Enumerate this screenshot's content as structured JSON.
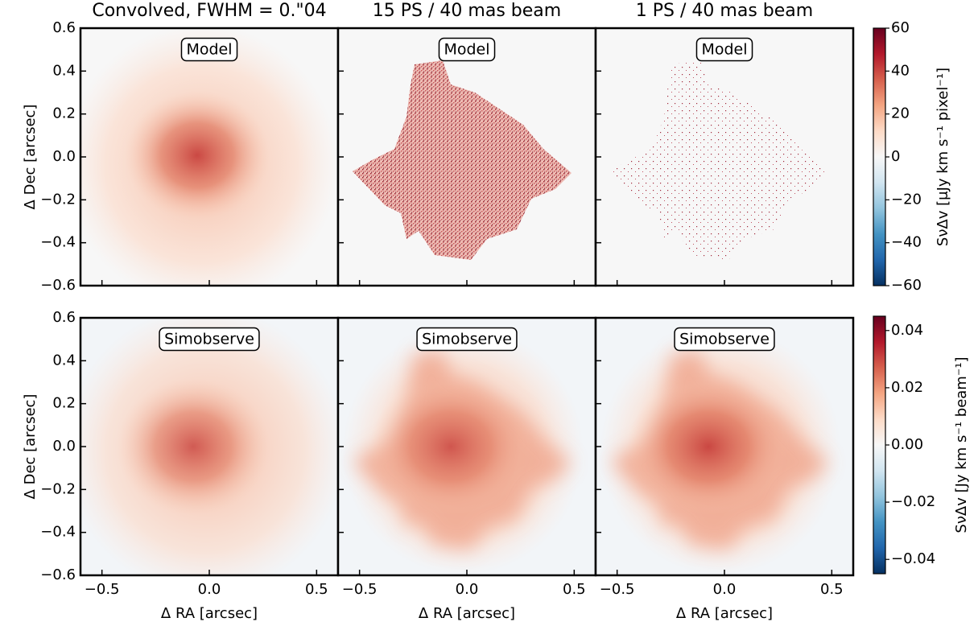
{
  "chart_data": [
    {
      "type": "image",
      "title": "Convolved, FWHM = 0.\"04",
      "label": "Model",
      "xlim": [
        -0.6,
        0.6
      ],
      "ylim": [
        -0.6,
        0.6
      ],
      "yticks": [
        {
          "value": -0.6,
          "label": "−0.6"
        },
        {
          "value": -0.4,
          "label": "−0.4"
        },
        {
          "value": -0.2,
          "label": "−0.2"
        },
        {
          "value": 0,
          "label": "0.0"
        },
        0.2,
        0.4,
        0.6
      ],
      "ylabel": "Δ Dec [arcsec]"
    },
    {
      "type": "image",
      "title": "15 PS / 40 mas beam",
      "label": "Model",
      "xlim": [
        -0.6,
        0.6
      ],
      "ylim": [
        -0.6,
        0.6
      ]
    },
    {
      "type": "image",
      "title": "1 PS / 40 mas beam",
      "label": "Model",
      "xlim": [
        -0.6,
        0.6
      ],
      "ylim": [
        -0.6,
        0.6
      ]
    },
    {
      "type": "image",
      "label": "Simobserve",
      "xlim": [
        -0.6,
        0.6
      ],
      "ylim": [
        -0.6,
        0.6
      ],
      "xticks": [
        {
          "value": -0.5,
          "label": "−0.5"
        },
        {
          "value": 0,
          "label": "0.0"
        },
        0.5
      ],
      "xlabel": "Δ RA [arcsec]",
      "yticks": [
        {
          "value": -0.6,
          "label": "−0.6"
        },
        {
          "value": -0.4,
          "label": "−0.4"
        },
        {
          "value": -0.2,
          "label": "−0.2"
        },
        {
          "value": 0,
          "label": "0.0"
        },
        0.2,
        0.4,
        0.6
      ],
      "ylabel": "Δ Dec [arcsec]"
    },
    {
      "type": "image",
      "label": "Simobserve",
      "xlim": [
        -0.6,
        0.6
      ],
      "ylim": [
        -0.6,
        0.6
      ],
      "xticks": [
        {
          "value": -0.5,
          "label": "−0.5"
        },
        {
          "value": 0,
          "label": "0.0"
        },
        0.5
      ],
      "xlabel": "Δ RA [arcsec]"
    },
    {
      "type": "image",
      "label": "Simobserve",
      "xlim": [
        -0.6,
        0.6
      ],
      "ylim": [
        -0.6,
        0.6
      ],
      "xticks": [
        {
          "value": -0.5,
          "label": "−0.5"
        },
        {
          "value": 0,
          "label": "0.0"
        },
        0.5
      ],
      "xlabel": "Δ RA [arcsec]"
    },
    {
      "type": "colorbar",
      "ylim": [
        -60,
        60
      ],
      "yticks": [
        {
          "value": -60,
          "label": "−60"
        },
        {
          "value": -40,
          "label": "−40"
        },
        {
          "value": -20,
          "label": "−20"
        },
        0,
        20,
        40,
        60
      ],
      "ylabel": "SνΔv [μJy km s⁻¹ pixel⁻¹]",
      "colors": [
        "#053061",
        "#2166ac",
        "#4393c3",
        "#92c5de",
        "#d1e5f0",
        "#f7f7f7",
        "#fddbc7",
        "#f4a582",
        "#d6604d",
        "#b2182b",
        "#67001f"
      ]
    },
    {
      "type": "colorbar",
      "ylim": [
        -0.045,
        0.045
      ],
      "yticks": [
        {
          "value": -0.04,
          "label": "−0.04"
        },
        {
          "value": -0.02,
          "label": "−0.02"
        },
        {
          "value": 0,
          "label": "0.00"
        },
        0.02,
        0.04
      ],
      "ylabel": "SνΔv [Jy km s⁻¹ beam⁻¹]",
      "colors": [
        "#053061",
        "#2166ac",
        "#4393c3",
        "#92c5de",
        "#d1e5f0",
        "#f7f7f7",
        "#fddbc7",
        "#f4a582",
        "#d6604d",
        "#b2182b",
        "#67001f"
      ]
    }
  ]
}
